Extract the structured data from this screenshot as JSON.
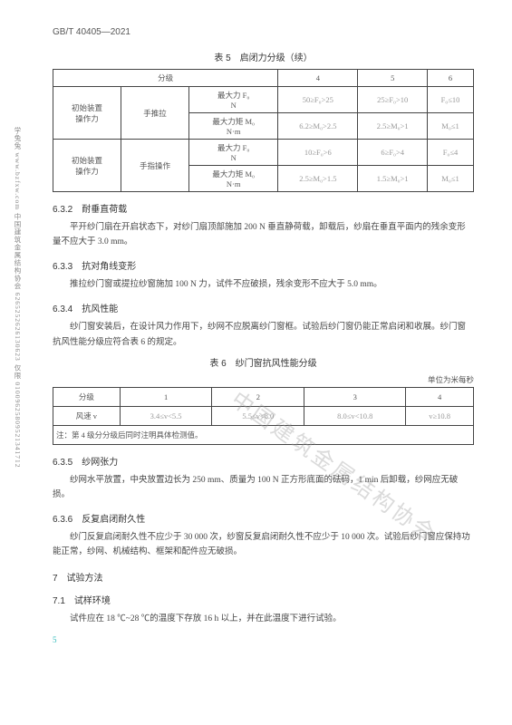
{
  "header": "GB/T 40405—2021",
  "side_text": "学兔兔 www.bzfxw.com 中国建筑金属结构协会 6265252626130623 仅限 01009625809521341712",
  "watermark": "中国建筑金属结构协会",
  "table5": {
    "caption": "表 5　启闭力分级（续）",
    "head": {
      "c1": "分级",
      "c4": "4",
      "c5": "5",
      "c6": "6"
    },
    "rows": [
      {
        "r1": "初始装置\n操作力",
        "r2": "手推拉",
        "r3": "最大力 F₀\nN",
        "c4": "50≥F₀>25",
        "c5": "25≥F₀>10",
        "c6": "F₀≤10"
      },
      {
        "r3": "最大力矩 M₀\nN·m",
        "c4": "6.2≥M₀>2.5",
        "c5": "2.5≥M₀>1",
        "c6": "M₀≤1"
      },
      {
        "r1": "初始装置\n操作力",
        "r2": "手指操作",
        "r3": "最大力 F₀\nN",
        "c4": "10≥F₀>6",
        "c5": "6≥F₀>4",
        "c6": "F₀≤4"
      },
      {
        "r3": "最大力矩 M₀\nN·m",
        "c4": "2.5≥M₀>1.5",
        "c5": "1.5≥M₀>1",
        "c6": "M₀≤1"
      }
    ]
  },
  "s632": {
    "title": "6.3.2　耐垂直荷载",
    "para": "平开纱门扇在开启状态下，对纱门扇顶部施加 200 N 垂直静荷载，卸载后，纱扇在垂直平面内的残余变形量不应大于 3.0 mm。"
  },
  "s633": {
    "title": "6.3.3　抗对角线变形",
    "para": "推拉纱门窗或提拉纱窗施加 100 N 力，试件不应破损，残余变形不应大于 5.0 mm。"
  },
  "s634": {
    "title": "6.3.4　抗风性能",
    "para": "纱门窗安装后，在设计风力作用下，纱网不应脱离纱门窗框。试验后纱门窗仍能正常启闭和收展。纱门窗抗风性能分级应符合表 6 的规定。"
  },
  "table6": {
    "caption": "表 6　纱门窗抗风性能分级",
    "unit": "单位为米每秒",
    "head": {
      "c1": "分级",
      "c2": "1",
      "c3": "2",
      "c4": "3",
      "c5": "4"
    },
    "row": {
      "c1": "风速 v",
      "c2": "3.4≤v<5.5",
      "c3": "5.5≤v<8.0",
      "c4": "8.0≤v<10.8",
      "c5": "v≥10.8"
    },
    "note": "注：第 4 级分分级后同时注明具体检测值。"
  },
  "s635": {
    "title": "6.3.5　纱网张力",
    "para": "纱网水平放置，中央放置边长为 250 mm、质量为 100 N 正方形底面的砝码，1 min 后卸载，纱网应无破损。"
  },
  "s636": {
    "title": "6.3.6　反复启闭耐久性",
    "para": "纱门反复启闭耐久性不应少于 30 000 次，纱窗反复启闭耐久性不应少于 10 000 次。试验后纱门窗应保持功能正常，纱网、机械结构、框架和配件应无破损。"
  },
  "s7": {
    "title": "7　试验方法"
  },
  "s71": {
    "title": "7.1　试样环境",
    "para": "试件应在 18 ℃~28 ℃的温度下存放 16 h 以上，并在此温度下进行试验。"
  },
  "page_num": "5"
}
